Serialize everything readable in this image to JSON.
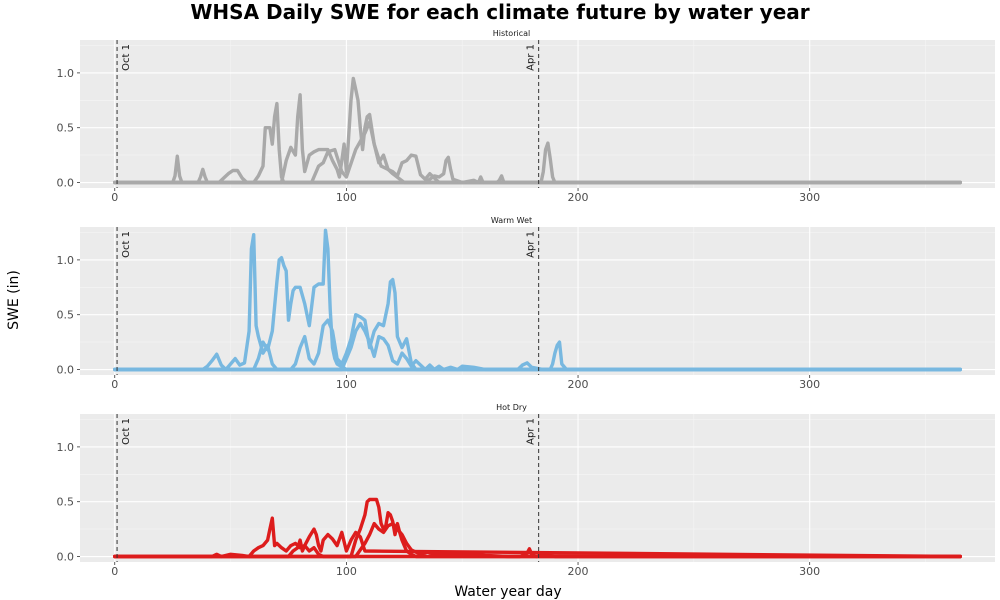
{
  "title": "WHSA Daily SWE for each climate future by water year",
  "colors": {
    "panel_bg": "#ebebeb",
    "grid_major": "#ffffff",
    "vline": "#333333"
  },
  "chart_data": {
    "type": "line",
    "title": "WHSA Daily SWE for each climate future by water year",
    "xlabel": "Water year day",
    "ylabel": "SWE (in)",
    "xlim": [
      -15,
      380
    ],
    "ylim": [
      -0.05,
      1.3
    ],
    "x_ticks": [
      0,
      100,
      200,
      300
    ],
    "y_ticks": [
      0.0,
      0.5,
      1.0
    ],
    "y_tick_labels": [
      "0.0",
      "0.5",
      "1.0"
    ],
    "vlines": [
      {
        "x": 1,
        "label": "Oct 1"
      },
      {
        "x": 183,
        "label": "Apr 1"
      }
    ],
    "grid": true,
    "legend": "none",
    "panels": [
      {
        "strip": "Historical",
        "color": "#a9a9a9",
        "series": [
          {
            "x": [
              0,
              25,
              26,
              27,
              28,
              29,
              36,
              37,
              38,
              39,
              40,
              45,
              47,
              49,
              51,
              53,
              55,
              57,
              60,
              365
            ],
            "values": [
              0,
              0,
              0.06,
              0.24,
              0.06,
              0,
              0,
              0.05,
              0.12,
              0.05,
              0,
              0,
              0.04,
              0.08,
              0.11,
              0.11,
              0.04,
              0,
              0,
              0
            ]
          },
          {
            "x": [
              0,
              60,
              62,
              64,
              65,
              66,
              67,
              68,
              69,
              70,
              71,
              72,
              73,
              75,
              200,
              365
            ],
            "values": [
              0,
              0,
              0.06,
              0.15,
              0.5,
              0.5,
              0.5,
              0.35,
              0.6,
              0.72,
              0.3,
              0.05,
              0,
              0,
              0,
              0
            ]
          },
          {
            "x": [
              0,
              72,
              74,
              76,
              78,
              79,
              80,
              81,
              82,
              84,
              86,
              88,
              90,
              92,
              94,
              96,
              97,
              98,
              99,
              100,
              102,
              103,
              104,
              105,
              106,
              107,
              108,
              109,
              110,
              112,
              114,
              116,
              118,
              120,
              125,
              365
            ],
            "values": [
              0,
              0,
              0.2,
              0.32,
              0.25,
              0.6,
              0.8,
              0.3,
              0.1,
              0.25,
              0.28,
              0.3,
              0.3,
              0.3,
              0.2,
              0.12,
              0.05,
              0.2,
              0.35,
              0.1,
              0.75,
              0.95,
              0.85,
              0.75,
              0.5,
              0.3,
              0.5,
              0.6,
              0.62,
              0.35,
              0.18,
              0.25,
              0.12,
              0.08,
              0,
              0
            ]
          },
          {
            "x": [
              0,
              85,
              88,
              90,
              92,
              95,
              98,
              100,
              104,
              108,
              110,
              112,
              115,
              118,
              120,
              122,
              124,
              126,
              128,
              130,
              132,
              134,
              136,
              140,
              365
            ],
            "values": [
              0,
              0,
              0.15,
              0.18,
              0.28,
              0.3,
              0.1,
              0.05,
              0.3,
              0.45,
              0.55,
              0.35,
              0.15,
              0.12,
              0.1,
              0.06,
              0.18,
              0.2,
              0.25,
              0.24,
              0.07,
              0.03,
              0.08,
              0,
              0
            ]
          },
          {
            "x": [
              0,
              134,
              136,
              138,
              140,
              142,
              143,
              144,
              145,
              146,
              150,
              155,
              157,
              158,
              159,
              165,
              166,
              167,
              168,
              175,
              180,
              184,
              185,
              186,
              187,
              188,
              189,
              190,
              191,
              192,
              200,
              365
            ],
            "values": [
              0,
              0,
              0.03,
              0.06,
              0.05,
              0.08,
              0.2,
              0.23,
              0.12,
              0.03,
              0,
              0.02,
              0,
              0.05,
              0,
              0,
              0.02,
              0.06,
              0,
              0,
              0,
              0,
              0.1,
              0.3,
              0.36,
              0.22,
              0.05,
              0,
              0,
              0,
              0,
              0
            ]
          }
        ]
      },
      {
        "strip": "Warm Wet",
        "color": "#78b8e0",
        "series": [
          {
            "x": [
              0,
              38,
              40,
              42,
              44,
              46,
              48,
              50,
              52,
              54,
              56,
              58,
              59,
              60,
              61,
              62,
              64,
              66,
              68,
              70,
              365
            ],
            "values": [
              0,
              0,
              0.03,
              0.08,
              0.14,
              0.04,
              0,
              0.05,
              0.1,
              0.04,
              0.06,
              0.35,
              1.1,
              1.23,
              0.4,
              0.3,
              0.15,
              0.22,
              0.05,
              0,
              0
            ]
          },
          {
            "x": [
              0,
              60,
              62,
              64,
              66,
              68,
              70,
              71,
              72,
              73,
              74,
              75,
              76,
              77,
              78,
              80,
              82,
              84,
              86,
              88,
              90,
              91,
              92,
              93,
              94,
              95,
              96,
              100,
              365
            ],
            "values": [
              0,
              0,
              0.1,
              0.25,
              0.18,
              0.35,
              0.8,
              1.0,
              1.02,
              0.95,
              0.9,
              0.45,
              0.6,
              0.72,
              0.75,
              0.75,
              0.6,
              0.4,
              0.75,
              0.78,
              0.78,
              1.27,
              1.1,
              0.55,
              0.2,
              0.1,
              0.05,
              0,
              0
            ]
          },
          {
            "x": [
              0,
              76,
              78,
              80,
              82,
              84,
              86,
              88,
              90,
              92,
              94,
              96,
              98,
              100,
              102,
              104,
              106,
              108,
              110,
              112,
              114,
              116,
              118,
              119,
              120,
              121,
              122,
              124,
              126,
              128,
              130,
              365
            ],
            "values": [
              0,
              0,
              0.05,
              0.2,
              0.3,
              0.1,
              0.05,
              0.15,
              0.4,
              0.45,
              0.35,
              0.1,
              0.05,
              0.15,
              0.28,
              0.5,
              0.48,
              0.45,
              0.2,
              0.35,
              0.42,
              0.4,
              0.6,
              0.8,
              0.82,
              0.7,
              0.3,
              0.2,
              0.28,
              0.06,
              0,
              0
            ]
          },
          {
            "x": [
              0,
              98,
              100,
              102,
              104,
              106,
              108,
              110,
              112,
              114,
              116,
              118,
              120,
              122,
              124,
              126,
              128,
              130,
              134,
              136,
              138,
              140,
              142,
              145,
              148,
              150,
              155,
              160,
              365
            ],
            "values": [
              0,
              0,
              0.1,
              0.2,
              0.35,
              0.42,
              0.35,
              0.25,
              0.12,
              0.3,
              0.28,
              0.22,
              0.08,
              0.05,
              0.15,
              0.1,
              0.03,
              0.08,
              0,
              0.04,
              0,
              0.03,
              0,
              0.02,
              0,
              0.03,
              0.02,
              0,
              0
            ]
          },
          {
            "x": [
              0,
              170,
              174,
              176,
              178,
              180,
              185,
              188,
              189,
              190,
              191,
              192,
              193,
              195,
              365
            ],
            "values": [
              0,
              0,
              0,
              0.04,
              0.06,
              0.02,
              0,
              0,
              0.05,
              0.15,
              0.22,
              0.25,
              0.05,
              0,
              0
            ]
          }
        ]
      },
      {
        "strip": "Hot Dry",
        "color": "#dd1c1c",
        "series": [
          {
            "x": [
              0,
              42,
              44,
              46,
              50,
              55,
              58,
              60,
              62,
              64,
              66,
              67,
              68,
              69,
              70,
              72,
              74,
              76,
              78,
              80,
              82,
              84,
              86,
              88,
              90,
              365
            ],
            "values": [
              0,
              0,
              0.02,
              0,
              0.02,
              0.01,
              0,
              0.05,
              0.08,
              0.1,
              0.15,
              0.25,
              0.35,
              0.1,
              0.12,
              0.08,
              0.05,
              0.1,
              0.12,
              0.08,
              0.1,
              0.05,
              0.08,
              0.02,
              0,
              0
            ]
          },
          {
            "x": [
              0,
              75,
              77,
              79,
              80,
              81,
              82,
              84,
              86,
              87,
              88,
              89,
              90,
              92,
              94,
              96,
              98,
              100,
              102,
              104,
              106,
              108,
              365
            ],
            "values": [
              0,
              0,
              0.05,
              0.08,
              0.15,
              0.05,
              0.1,
              0.18,
              0.25,
              0.2,
              0.1,
              0.05,
              0.15,
              0.2,
              0.16,
              0.1,
              0.22,
              0.05,
              0.15,
              0.22,
              0.18,
              0.05,
              0
            ]
          },
          {
            "x": [
              0,
              102,
              104,
              106,
              108,
              109,
              110,
              111,
              112,
              113,
              114,
              115,
              116,
              117,
              118,
              119,
              120,
              121,
              122,
              123,
              124,
              125,
              126,
              128,
              130,
              365
            ],
            "values": [
              0,
              0,
              0.15,
              0.25,
              0.38,
              0.5,
              0.52,
              0.52,
              0.52,
              0.52,
              0.45,
              0.3,
              0.25,
              0.28,
              0.4,
              0.38,
              0.32,
              0.2,
              0.3,
              0.22,
              0.15,
              0.1,
              0.05,
              0.02,
              0,
              0
            ]
          },
          {
            "x": [
              0,
              104,
              106,
              108,
              110,
              112,
              114,
              116,
              118,
              120,
              122,
              124,
              126,
              128,
              130,
              132,
              135,
              138,
              140,
              145,
              150,
              155,
              160,
              170,
              175,
              178,
              179,
              180,
              182,
              185,
              188,
              190,
              365
            ],
            "values": [
              0,
              0,
              0.06,
              0.12,
              0.2,
              0.3,
              0.25,
              0.22,
              0.28,
              0.3,
              0.25,
              0.2,
              0.12,
              0.06,
              0.04,
              0.02,
              0.04,
              0.02,
              0.03,
              0.02,
              0.03,
              0.02,
              0.01,
              0,
              0,
              0.03,
              0.07,
              0.02,
              0,
              0.02,
              0.01,
              0,
              0
            ]
          }
        ]
      }
    ]
  }
}
